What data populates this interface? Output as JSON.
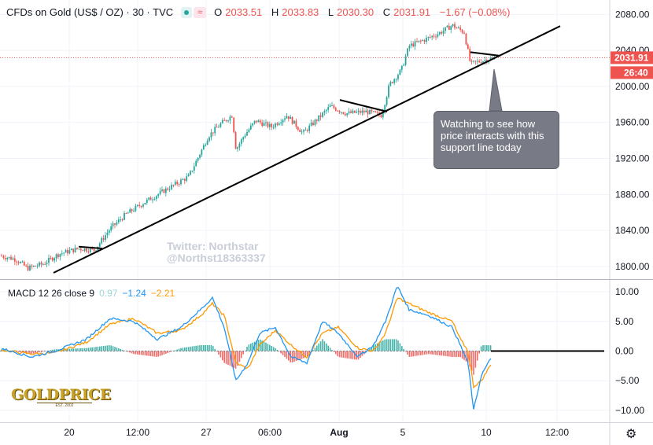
{
  "header": {
    "symbol": "CFDs on Gold (US$ / OZ) · 30 · TVC",
    "open_label": "O",
    "open": "2033.51",
    "high_label": "H",
    "high": "2033.83",
    "low_label": "L",
    "low": "2030.30",
    "close_label": "C",
    "close": "2031.91",
    "change": "−1.67 (−0.08%)"
  },
  "price_badges": {
    "last": "2031.91",
    "countdown": "26:40"
  },
  "macd_header": {
    "label": "MACD 12 26 close 9",
    "hist": "0.97",
    "macd": "−1.24",
    "signal": "−2.21"
  },
  "annotation": {
    "text": "Watching to see how price interacts with this support line today"
  },
  "watermark": {
    "line1": "Twitter: Northstar",
    "line2": "@Northst18363337"
  },
  "logo": {
    "name": "GOLDPRICE",
    "est": "EST. 2002"
  },
  "colors": {
    "up": "#26a69a",
    "down": "#ef5350",
    "macd": "#2196f3",
    "signal": "#ff9800",
    "badge": "#ef5350"
  },
  "chart_data": [
    {
      "type": "candlestick",
      "title": "CFDs on Gold (US$ / OZ) · 30 · TVC",
      "y_ticks": [
        1800,
        1840,
        1880,
        1920,
        1960,
        2000,
        2040,
        2080
      ],
      "ylim": [
        1786,
        2096
      ],
      "x_ticks": [
        "20",
        "12:00",
        "27",
        "06:00",
        "Aug",
        "5",
        "12:00",
        "10",
        "12:00"
      ],
      "last_price": 2031.91,
      "price_path": [
        [
          0,
          1812
        ],
        [
          20,
          1808
        ],
        [
          35,
          1798
        ],
        [
          55,
          1803
        ],
        [
          75,
          1814
        ],
        [
          100,
          1820
        ],
        [
          120,
          1818
        ],
        [
          140,
          1842
        ],
        [
          160,
          1858
        ],
        [
          185,
          1872
        ],
        [
          210,
          1885
        ],
        [
          240,
          1900
        ],
        [
          265,
          1945
        ],
        [
          280,
          1958
        ],
        [
          295,
          1968
        ],
        [
          300,
          1930
        ],
        [
          310,
          1945
        ],
        [
          325,
          1962
        ],
        [
          345,
          1955
        ],
        [
          365,
          1968
        ],
        [
          385,
          1948
        ],
        [
          405,
          1965
        ],
        [
          420,
          1978
        ],
        [
          440,
          1970
        ],
        [
          465,
          1972
        ],
        [
          485,
          1968
        ],
        [
          495,
          2002
        ],
        [
          510,
          2018
        ],
        [
          520,
          2045
        ],
        [
          540,
          2052
        ],
        [
          560,
          2060
        ],
        [
          575,
          2068
        ],
        [
          590,
          2060
        ],
        [
          598,
          2025
        ],
        [
          610,
          2028
        ],
        [
          630,
          2032
        ]
      ],
      "trendlines": [
        {
          "label": "support",
          "from": [
            68,
            1793
          ],
          "to": [
            712,
            2067
          ]
        },
        {
          "label": "upper-1",
          "from": [
            100,
            1822
          ],
          "to": [
            130,
            1820
          ]
        },
        {
          "label": "upper-2",
          "from": [
            432,
            1985
          ],
          "to": [
            492,
            1972
          ]
        },
        {
          "label": "upper-3",
          "from": [
            598,
            2038
          ],
          "to": [
            636,
            2034
          ]
        }
      ]
    },
    {
      "type": "line",
      "title": "MACD 12 26 close 9",
      "y_ticks": [
        10.0,
        5.0,
        0.0,
        -5.0,
        -10.0
      ],
      "ylim": [
        -12,
        12
      ],
      "series": [
        {
          "name": "MACD",
          "values": [
            [
              0,
              0.5
            ],
            [
              40,
              -1
            ],
            [
              70,
              0
            ],
            [
              110,
              2
            ],
            [
              140,
              5.5
            ],
            [
              170,
              5
            ],
            [
              200,
              2
            ],
            [
              230,
              4
            ],
            [
              255,
              7
            ],
            [
              270,
              9
            ],
            [
              285,
              4
            ],
            [
              300,
              -5
            ],
            [
              315,
              -2
            ],
            [
              330,
              3
            ],
            [
              350,
              4
            ],
            [
              370,
              -1
            ],
            [
              390,
              -2
            ],
            [
              410,
              5
            ],
            [
              430,
              3
            ],
            [
              455,
              -1
            ],
            [
              475,
              1
            ],
            [
              490,
              5
            ],
            [
              505,
              11
            ],
            [
              520,
              7
            ],
            [
              545,
              6
            ],
            [
              575,
              4
            ],
            [
              585,
              1
            ],
            [
              595,
              -2
            ],
            [
              602,
              -10
            ],
            [
              612,
              -4
            ],
            [
              624,
              -1.24
            ]
          ]
        },
        {
          "name": "Signal",
          "values": [
            [
              0,
              0.2
            ],
            [
              40,
              -0.5
            ],
            [
              70,
              -0.3
            ],
            [
              110,
              1.5
            ],
            [
              140,
              4.5
            ],
            [
              170,
              5.5
            ],
            [
              200,
              3
            ],
            [
              230,
              3.5
            ],
            [
              255,
              6
            ],
            [
              270,
              8
            ],
            [
              285,
              6
            ],
            [
              300,
              -2
            ],
            [
              315,
              -3
            ],
            [
              330,
              1
            ],
            [
              350,
              3.5
            ],
            [
              370,
              1
            ],
            [
              390,
              -1
            ],
            [
              410,
              3
            ],
            [
              430,
              4
            ],
            [
              455,
              0.5
            ],
            [
              475,
              0
            ],
            [
              490,
              3
            ],
            [
              505,
              9
            ],
            [
              520,
              8
            ],
            [
              545,
              6.5
            ],
            [
              575,
              5
            ],
            [
              585,
              2
            ],
            [
              595,
              0
            ],
            [
              602,
              -6
            ],
            [
              612,
              -5
            ],
            [
              624,
              -2.21
            ]
          ]
        }
      ],
      "zero_line_extension": {
        "from": 624,
        "to": 768,
        "value": 0
      }
    }
  ]
}
